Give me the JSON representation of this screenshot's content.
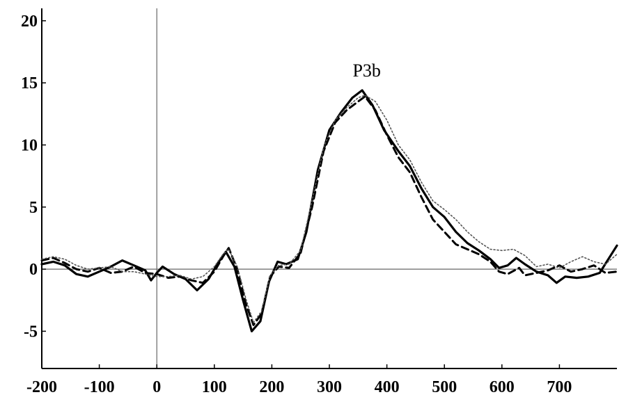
{
  "chart_data": {
    "type": "line",
    "title": "",
    "xlabel": "",
    "ylabel": "",
    "xlim": [
      -200,
      800
    ],
    "ylim": [
      -8,
      21
    ],
    "grid": false,
    "legend": "none",
    "x_ticks": [
      -200,
      -100,
      0,
      100,
      200,
      300,
      400,
      500,
      600,
      700
    ],
    "x_tick_labels": [
      "-200",
      "-100",
      "0",
      "100",
      "200",
      "300",
      "400",
      "500",
      "600",
      "700"
    ],
    "y_ticks": [
      -5,
      0,
      5,
      10,
      15,
      20
    ],
    "y_tick_labels": [
      "-5",
      "0",
      "5",
      "10",
      "15",
      "20"
    ],
    "reference_lines": {
      "horizontal_y": 0,
      "vertical_x": 0
    },
    "annotations": [
      {
        "text": "P3b",
        "x": 365,
        "y": 15.5
      }
    ],
    "series": [
      {
        "style": "solid",
        "color": "#000000",
        "points": [
          [
            -200,
            0.4
          ],
          [
            -180,
            0.6
          ],
          [
            -160,
            0.3
          ],
          [
            -140,
            -0.4
          ],
          [
            -120,
            -0.6
          ],
          [
            -100,
            -0.2
          ],
          [
            -80,
            0.2
          ],
          [
            -60,
            0.7
          ],
          [
            -40,
            0.3
          ],
          [
            -20,
            -0.1
          ],
          [
            -10,
            -0.9
          ],
          [
            0,
            -0.3
          ],
          [
            10,
            0.2
          ],
          [
            30,
            -0.4
          ],
          [
            50,
            -0.8
          ],
          [
            70,
            -1.7
          ],
          [
            90,
            -0.8
          ],
          [
            105,
            0.4
          ],
          [
            120,
            1.4
          ],
          [
            135,
            0.2
          ],
          [
            150,
            -2.5
          ],
          [
            165,
            -5.0
          ],
          [
            180,
            -4.2
          ],
          [
            195,
            -1.0
          ],
          [
            210,
            0.6
          ],
          [
            225,
            0.4
          ],
          [
            245,
            0.8
          ],
          [
            260,
            3.0
          ],
          [
            280,
            8.0
          ],
          [
            300,
            11.2
          ],
          [
            320,
            12.6
          ],
          [
            340,
            13.8
          ],
          [
            357,
            14.4
          ],
          [
            375,
            13.2
          ],
          [
            395,
            11.2
          ],
          [
            420,
            9.5
          ],
          [
            440,
            8.3
          ],
          [
            460,
            6.5
          ],
          [
            480,
            5.0
          ],
          [
            500,
            4.2
          ],
          [
            520,
            3.0
          ],
          [
            540,
            2.1
          ],
          [
            560,
            1.5
          ],
          [
            580,
            0.8
          ],
          [
            595,
            0.1
          ],
          [
            610,
            0.3
          ],
          [
            625,
            0.9
          ],
          [
            640,
            0.4
          ],
          [
            660,
            -0.2
          ],
          [
            680,
            -0.5
          ],
          [
            695,
            -1.1
          ],
          [
            710,
            -0.6
          ],
          [
            730,
            -0.7
          ],
          [
            750,
            -0.6
          ],
          [
            770,
            -0.3
          ],
          [
            785,
            0.8
          ],
          [
            800,
            1.9
          ]
        ]
      },
      {
        "style": "dashed",
        "color": "#000000",
        "points": [
          [
            -200,
            0.7
          ],
          [
            -180,
            0.9
          ],
          [
            -160,
            0.5
          ],
          [
            -140,
            0.0
          ],
          [
            -120,
            -0.2
          ],
          [
            -100,
            0.1
          ],
          [
            -80,
            -0.3
          ],
          [
            -60,
            -0.2
          ],
          [
            -40,
            0.2
          ],
          [
            -20,
            -0.3
          ],
          [
            0,
            -0.4
          ],
          [
            20,
            -0.7
          ],
          [
            40,
            -0.6
          ],
          [
            60,
            -0.9
          ],
          [
            80,
            -1.1
          ],
          [
            100,
            -0.2
          ],
          [
            115,
            1.0
          ],
          [
            125,
            1.7
          ],
          [
            140,
            0.0
          ],
          [
            155,
            -2.8
          ],
          [
            168,
            -4.5
          ],
          [
            182,
            -3.6
          ],
          [
            197,
            -0.6
          ],
          [
            212,
            0.2
          ],
          [
            230,
            0.1
          ],
          [
            250,
            1.3
          ],
          [
            270,
            5.0
          ],
          [
            290,
            9.5
          ],
          [
            310,
            11.8
          ],
          [
            330,
            12.8
          ],
          [
            350,
            13.5
          ],
          [
            362,
            13.9
          ],
          [
            380,
            12.8
          ],
          [
            400,
            10.8
          ],
          [
            420,
            9.0
          ],
          [
            440,
            7.8
          ],
          [
            460,
            5.8
          ],
          [
            480,
            4.0
          ],
          [
            500,
            3.0
          ],
          [
            520,
            2.0
          ],
          [
            540,
            1.6
          ],
          [
            560,
            1.2
          ],
          [
            580,
            0.6
          ],
          [
            595,
            -0.2
          ],
          [
            610,
            -0.4
          ],
          [
            630,
            0.1
          ],
          [
            640,
            -0.5
          ],
          [
            660,
            -0.3
          ],
          [
            680,
            -0.1
          ],
          [
            700,
            0.3
          ],
          [
            720,
            -0.2
          ],
          [
            740,
            0.0
          ],
          [
            760,
            0.3
          ],
          [
            780,
            -0.3
          ],
          [
            800,
            -0.2
          ]
        ]
      },
      {
        "style": "dotted",
        "color": "#555555",
        "points": [
          [
            -200,
            0.8
          ],
          [
            -180,
            1.0
          ],
          [
            -160,
            0.8
          ],
          [
            -140,
            0.3
          ],
          [
            -120,
            0.0
          ],
          [
            -100,
            0.1
          ],
          [
            -80,
            0.2
          ],
          [
            -60,
            -0.2
          ],
          [
            -40,
            -0.2
          ],
          [
            -20,
            -0.4
          ],
          [
            0,
            -0.6
          ],
          [
            20,
            -0.6
          ],
          [
            40,
            -0.5
          ],
          [
            60,
            -0.8
          ],
          [
            80,
            -0.6
          ],
          [
            100,
            0.2
          ],
          [
            115,
            1.2
          ],
          [
            125,
            1.6
          ],
          [
            140,
            0.2
          ],
          [
            155,
            -2.4
          ],
          [
            168,
            -4.3
          ],
          [
            182,
            -3.4
          ],
          [
            197,
            -0.5
          ],
          [
            212,
            0.3
          ],
          [
            230,
            0.4
          ],
          [
            250,
            1.5
          ],
          [
            270,
            5.5
          ],
          [
            290,
            9.8
          ],
          [
            310,
            12.0
          ],
          [
            330,
            13.0
          ],
          [
            350,
            13.8
          ],
          [
            362,
            14.0
          ],
          [
            380,
            13.5
          ],
          [
            400,
            12.0
          ],
          [
            420,
            10.0
          ],
          [
            440,
            8.8
          ],
          [
            460,
            7.0
          ],
          [
            480,
            5.5
          ],
          [
            500,
            4.8
          ],
          [
            520,
            4.0
          ],
          [
            540,
            3.0
          ],
          [
            560,
            2.2
          ],
          [
            580,
            1.6
          ],
          [
            600,
            1.5
          ],
          [
            620,
            1.6
          ],
          [
            640,
            1.1
          ],
          [
            660,
            0.2
          ],
          [
            680,
            0.4
          ],
          [
            700,
            0.1
          ],
          [
            720,
            0.6
          ],
          [
            740,
            1.0
          ],
          [
            760,
            0.6
          ],
          [
            780,
            0.4
          ],
          [
            800,
            1.2
          ]
        ]
      }
    ]
  }
}
